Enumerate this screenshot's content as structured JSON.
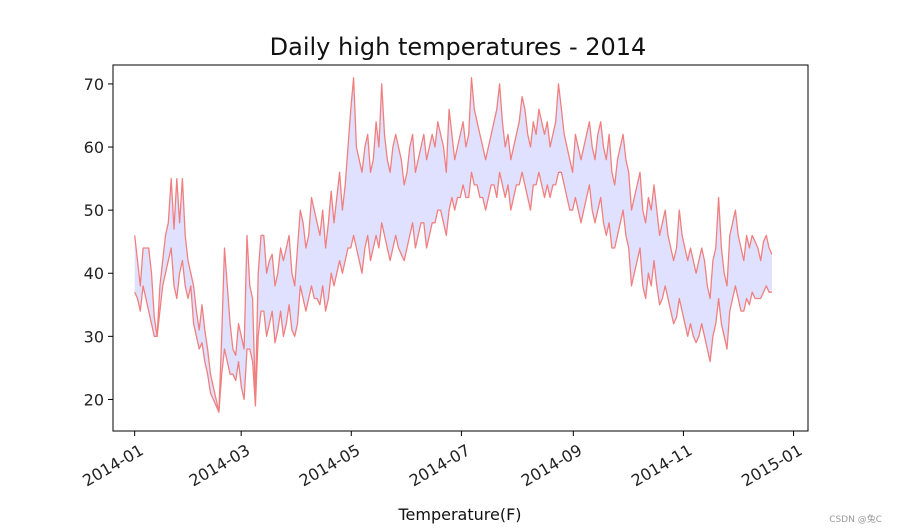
{
  "chart_data": {
    "type": "area",
    "title": "Daily high temperatures - 2014",
    "xlabel": "Temperature(F)",
    "ylabel": "",
    "x_start": "2014-01-01",
    "x_end": "2014-12-20",
    "xlim": [
      "2013-12-20",
      "2015-01-09"
    ],
    "ylim": [
      15,
      73
    ],
    "y_ticks": [
      20,
      30,
      40,
      50,
      60,
      70
    ],
    "x_ticks": [
      "2014-01",
      "2014-03",
      "2014-05",
      "2014-07",
      "2014-09",
      "2014-11",
      "2015-01"
    ],
    "x_tick_dates": [
      "2014-01-01",
      "2014-03-01",
      "2014-05-01",
      "2014-07-01",
      "2014-09-01",
      "2014-11-01",
      "2015-01-01"
    ],
    "grid": false,
    "fill_between": true,
    "colors": {
      "line": "#f08080",
      "fill": "#e0e0ff"
    },
    "series": [
      {
        "values": [
          46,
          42,
          38,
          44,
          44,
          44,
          40,
          33,
          30,
          38,
          42,
          46,
          48,
          55,
          47,
          55,
          48,
          55,
          46,
          42,
          40,
          38,
          34,
          31,
          35,
          31,
          28,
          24,
          22,
          20,
          18,
          30,
          44,
          38,
          32,
          28,
          27,
          32,
          30,
          28,
          46,
          38,
          36,
          20,
          40,
          46,
          46,
          40,
          42,
          43,
          38,
          40,
          44,
          42,
          44,
          46,
          40,
          38,
          44,
          50,
          48,
          44,
          46,
          52,
          50,
          48,
          46,
          50,
          44,
          48,
          53,
          48,
          52,
          56,
          50,
          54,
          60,
          66,
          71,
          60,
          58,
          56,
          60,
          62,
          56,
          58,
          64,
          60,
          70,
          62,
          58,
          56,
          60,
          62,
          60,
          58,
          54,
          56,
          60,
          62,
          56,
          58,
          60,
          62,
          58,
          60,
          62,
          60,
          64,
          62,
          60,
          56,
          66,
          62,
          58,
          60,
          62,
          64,
          60,
          62,
          71,
          66,
          64,
          62,
          60,
          58,
          60,
          62,
          64,
          66,
          70,
          64,
          60,
          62,
          58,
          60,
          62,
          64,
          68,
          66,
          62,
          60,
          64,
          62,
          66,
          64,
          62,
          64,
          60,
          62,
          64,
          70,
          66,
          62,
          60,
          58,
          56,
          62,
          60,
          58,
          60,
          62,
          64,
          60,
          58,
          62,
          64,
          60,
          58,
          62,
          56,
          54,
          58,
          60,
          62,
          58,
          56,
          50,
          52,
          54,
          56,
          50,
          48,
          52,
          50,
          54,
          50,
          46,
          48,
          50,
          46,
          44,
          42,
          44,
          50,
          46,
          44,
          42,
          44,
          42,
          40,
          42,
          44,
          42,
          38,
          36,
          42,
          44,
          52,
          44,
          40,
          38,
          46,
          48,
          50,
          46,
          44,
          42,
          46,
          44,
          46,
          45,
          44,
          42,
          45,
          46,
          44,
          43
        ],
        "role": "upper"
      },
      {
        "values": [
          37,
          36,
          34,
          38,
          36,
          34,
          32,
          30,
          30,
          34,
          38,
          40,
          42,
          44,
          38,
          36,
          40,
          42,
          38,
          36,
          38,
          32,
          30,
          28,
          29,
          26,
          24,
          21,
          20,
          19,
          18,
          24,
          28,
          26,
          24,
          24,
          23,
          26,
          22,
          20,
          28,
          28,
          26,
          19,
          30,
          34,
          34,
          30,
          32,
          34,
          29,
          31,
          34,
          30,
          32,
          35,
          31,
          30,
          32,
          38,
          36,
          34,
          36,
          38,
          36,
          36,
          35,
          38,
          34,
          36,
          40,
          38,
          40,
          42,
          40,
          42,
          44,
          44,
          46,
          44,
          42,
          40,
          44,
          46,
          42,
          44,
          46,
          44,
          48,
          46,
          44,
          42,
          44,
          46,
          44,
          43,
          42,
          44,
          46,
          48,
          44,
          46,
          48,
          48,
          44,
          46,
          48,
          48,
          50,
          50,
          48,
          46,
          50,
          52,
          50,
          52,
          52,
          54,
          52,
          52,
          56,
          54,
          54,
          52,
          52,
          50,
          52,
          54,
          54,
          52,
          56,
          54,
          52,
          54,
          50,
          52,
          54,
          54,
          56,
          54,
          52,
          50,
          54,
          54,
          56,
          54,
          52,
          54,
          52,
          54,
          54,
          56,
          56,
          54,
          52,
          50,
          50,
          52,
          50,
          48,
          50,
          52,
          54,
          50,
          48,
          50,
          52,
          48,
          46,
          48,
          44,
          44,
          46,
          48,
          50,
          46,
          44,
          38,
          40,
          42,
          44,
          38,
          36,
          40,
          38,
          42,
          38,
          35,
          36,
          38,
          36,
          34,
          32,
          33,
          36,
          34,
          32,
          30,
          32,
          30,
          29,
          30,
          32,
          30,
          28,
          26,
          30,
          32,
          36,
          32,
          30,
          28,
          34,
          36,
          38,
          36,
          34,
          34,
          36,
          35,
          37,
          36,
          36,
          36,
          37,
          38,
          37,
          37
        ],
        "role": "lower"
      }
    ]
  },
  "watermark": "CSDN @兔C"
}
